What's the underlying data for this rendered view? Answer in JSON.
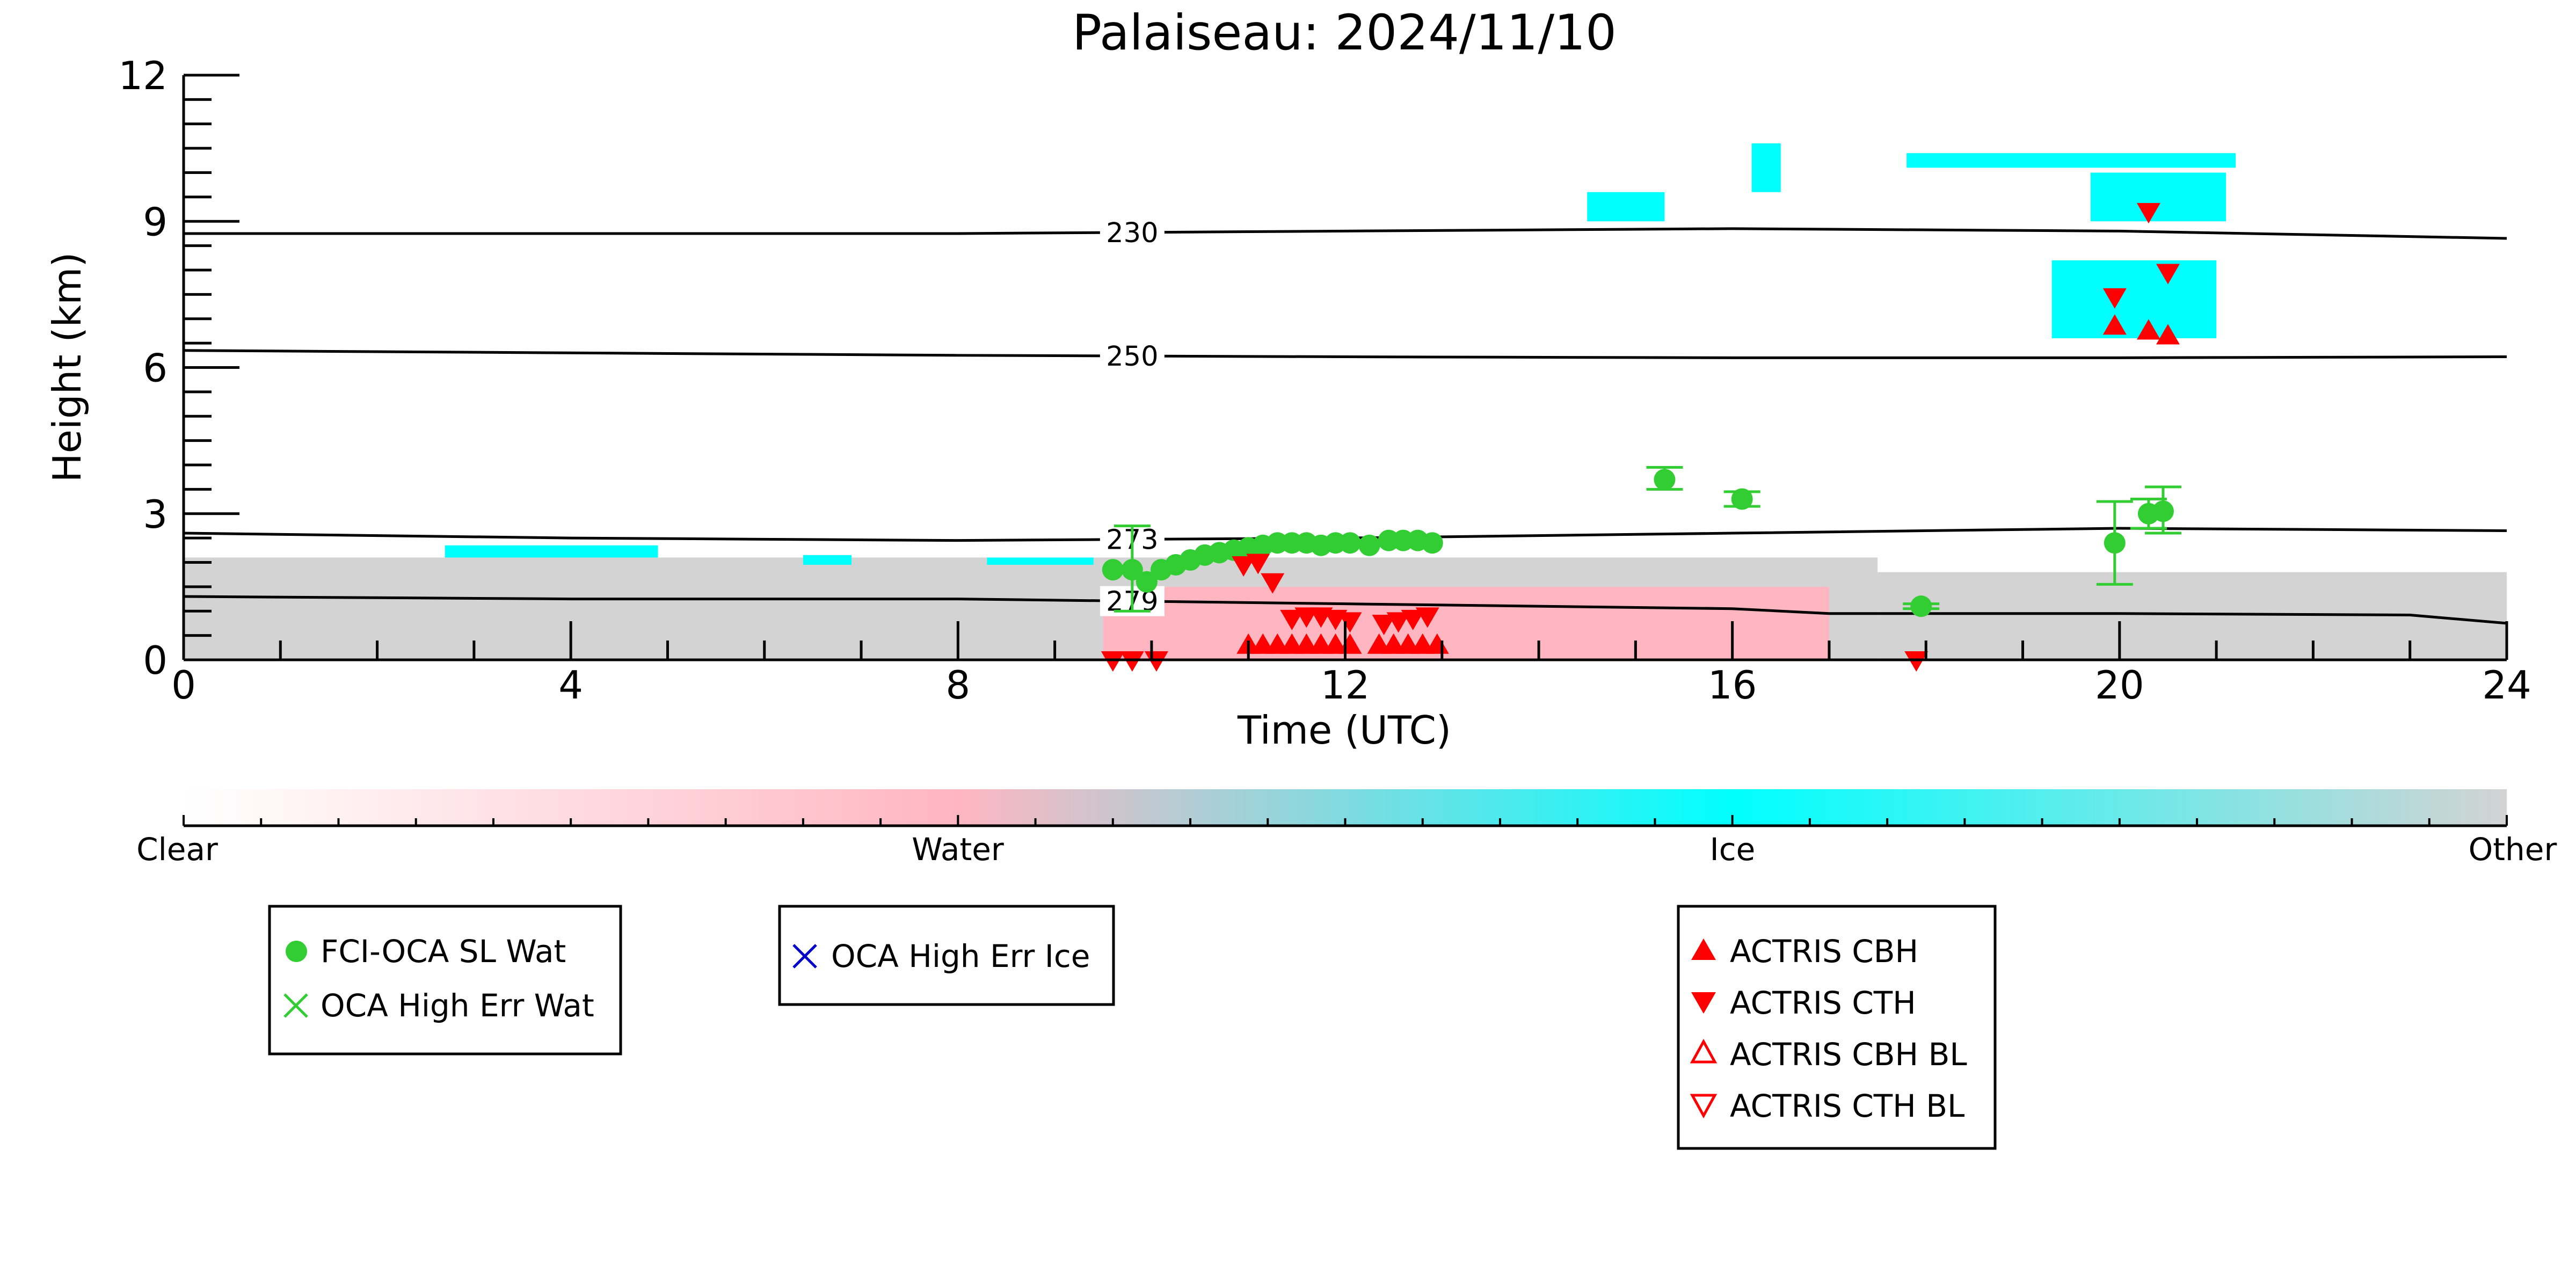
{
  "chart_data": {
    "type": "scatter",
    "title": "Palaiseau: 2024/11/10",
    "xlabel": "Time (UTC)",
    "ylabel": "Height (km)",
    "xlim": [
      0,
      24
    ],
    "ylim": [
      0,
      12
    ],
    "xticks": [
      0,
      4,
      8,
      12,
      16,
      20,
      24
    ],
    "yticks": [
      0,
      3,
      6,
      9,
      12
    ],
    "grid": false,
    "background_classification": {
      "colorbar_labels": [
        "Clear",
        "Water",
        "Ice",
        "Other"
      ],
      "colorbar_colors": [
        "#ffffff",
        "#ffb6c1",
        "#00ffff",
        "#d3d3d3"
      ],
      "regions": [
        {
          "class": "Other",
          "x": [
            0,
            17.5
          ],
          "y": [
            0,
            2.1
          ]
        },
        {
          "class": "Ice",
          "x": [
            2.7,
            4.9
          ],
          "y": [
            2.1,
            2.35
          ]
        },
        {
          "class": "Ice",
          "x": [
            6.4,
            6.9
          ],
          "y": [
            1.95,
            2.15
          ]
        },
        {
          "class": "Ice",
          "x": [
            8.3,
            9.4
          ],
          "y": [
            1.95,
            2.1
          ]
        },
        {
          "class": "Water",
          "x": [
            9.5,
            17.0
          ],
          "y": [
            0,
            1.5
          ]
        },
        {
          "class": "Other",
          "x": [
            17.5,
            24
          ],
          "y": [
            0,
            1.8
          ]
        },
        {
          "class": "Ice",
          "x": [
            14.5,
            15.3
          ],
          "y": [
            9.0,
            9.6
          ]
        },
        {
          "class": "Ice",
          "x": [
            16.2,
            16.5
          ],
          "y": [
            9.6,
            10.6
          ]
        },
        {
          "class": "Ice",
          "x": [
            17.8,
            21.2
          ],
          "y": [
            10.1,
            10.4
          ]
        },
        {
          "class": "Ice",
          "x": [
            19.7,
            21.1
          ],
          "y": [
            9.0,
            10.0
          ]
        },
        {
          "class": "Ice",
          "x": [
            19.3,
            21.0
          ],
          "y": [
            6.6,
            8.2
          ]
        }
      ]
    },
    "contours": [
      {
        "label": "230",
        "x": [
          0,
          4,
          8,
          12,
          16,
          20,
          24
        ],
        "y": [
          8.75,
          8.75,
          8.75,
          8.8,
          8.85,
          8.8,
          8.65
        ]
      },
      {
        "label": "250",
        "x": [
          0,
          4,
          8,
          12,
          16,
          20,
          24
        ],
        "y": [
          6.35,
          6.3,
          6.25,
          6.22,
          6.2,
          6.2,
          6.22
        ]
      },
      {
        "label": "273",
        "x": [
          0,
          4,
          8,
          12,
          16,
          20,
          24
        ],
        "y": [
          2.6,
          2.5,
          2.45,
          2.5,
          2.6,
          2.7,
          2.65
        ]
      },
      {
        "label": "279",
        "x": [
          0,
          4,
          8,
          12,
          16,
          17,
          18,
          20,
          23,
          24
        ],
        "y": [
          1.3,
          1.25,
          1.25,
          1.15,
          1.05,
          0.95,
          0.95,
          0.95,
          0.92,
          0.75
        ]
      }
    ],
    "series": [
      {
        "name": "FCI-OCA SL Wat",
        "marker": "filled-circle",
        "color": "#32cd32",
        "x": [
          9.6,
          9.8,
          9.95,
          10.1,
          10.25,
          10.4,
          10.55,
          10.7,
          10.85,
          11.0,
          11.15,
          11.3,
          11.45,
          11.6,
          11.75,
          11.9,
          12.05,
          12.25,
          12.45,
          12.6,
          12.75,
          12.9,
          15.3,
          16.1,
          17.95,
          19.95,
          20.3,
          20.45
        ],
        "y": [
          1.85,
          1.85,
          1.6,
          1.85,
          1.95,
          2.05,
          2.15,
          2.2,
          2.25,
          2.3,
          2.35,
          2.4,
          2.4,
          2.4,
          2.35,
          2.4,
          2.4,
          2.35,
          2.45,
          2.45,
          2.45,
          2.4,
          3.7,
          3.3,
          1.1,
          2.4,
          3.0,
          3.05
        ],
        "yerr_low": [
          null,
          1.0,
          null,
          null,
          null,
          null,
          null,
          null,
          null,
          null,
          null,
          null,
          null,
          null,
          null,
          null,
          null,
          null,
          null,
          null,
          null,
          null,
          3.5,
          3.15,
          1.05,
          1.55,
          2.7,
          2.6
        ],
        "yerr_high": [
          null,
          2.75,
          null,
          null,
          null,
          null,
          null,
          null,
          null,
          null,
          null,
          null,
          null,
          null,
          null,
          null,
          null,
          null,
          null,
          null,
          null,
          null,
          3.95,
          3.45,
          1.15,
          3.25,
          3.3,
          3.55
        ]
      },
      {
        "name": "OCA High Err Wat",
        "marker": "x",
        "color": "#32cd32",
        "x": [],
        "y": []
      },
      {
        "name": "OCA High Err Ice",
        "marker": "x",
        "color": "#0000cd",
        "x": [],
        "y": []
      },
      {
        "name": "ACTRIS CBH",
        "marker": "filled-triangle-up",
        "color": "#ff0000",
        "x": [
          11.0,
          11.15,
          11.3,
          11.45,
          11.6,
          11.75,
          11.9,
          12.05,
          12.35,
          12.5,
          12.65,
          12.8,
          12.95,
          19.95,
          20.3,
          20.5
        ],
        "y": [
          0.3,
          0.3,
          0.3,
          0.3,
          0.3,
          0.3,
          0.3,
          0.3,
          0.3,
          0.3,
          0.3,
          0.3,
          0.3,
          6.85,
          6.75,
          6.65
        ]
      },
      {
        "name": "ACTRIS CTH",
        "marker": "filled-triangle-down",
        "color": "#ff0000",
        "x": [
          9.6,
          9.8,
          10.05,
          10.95,
          11.1,
          11.25,
          11.45,
          11.6,
          11.75,
          11.9,
          12.05,
          12.4,
          12.55,
          12.7,
          12.85,
          17.9,
          19.95,
          20.3,
          20.5
        ],
        "y": [
          0.0,
          0.0,
          0.0,
          1.95,
          2.0,
          1.6,
          0.85,
          0.9,
          0.9,
          0.85,
          0.8,
          0.75,
          0.8,
          0.85,
          0.9,
          0.0,
          7.45,
          9.2,
          7.95
        ]
      },
      {
        "name": "ACTRIS CBH BL",
        "marker": "open-triangle-up",
        "color": "#ff0000",
        "x": [],
        "y": []
      },
      {
        "name": "ACTRIS CTH BL",
        "marker": "open-triangle-down",
        "color": "#ff0000",
        "x": [],
        "y": []
      }
    ],
    "legends": [
      {
        "entries": [
          "FCI-OCA SL Wat",
          "OCA High Err Wat"
        ]
      },
      {
        "entries": [
          "OCA High Err Ice"
        ]
      },
      {
        "entries": [
          "ACTRIS CBH",
          "ACTRIS CTH",
          "ACTRIS CBH BL",
          "ACTRIS CTH BL"
        ]
      }
    ]
  }
}
